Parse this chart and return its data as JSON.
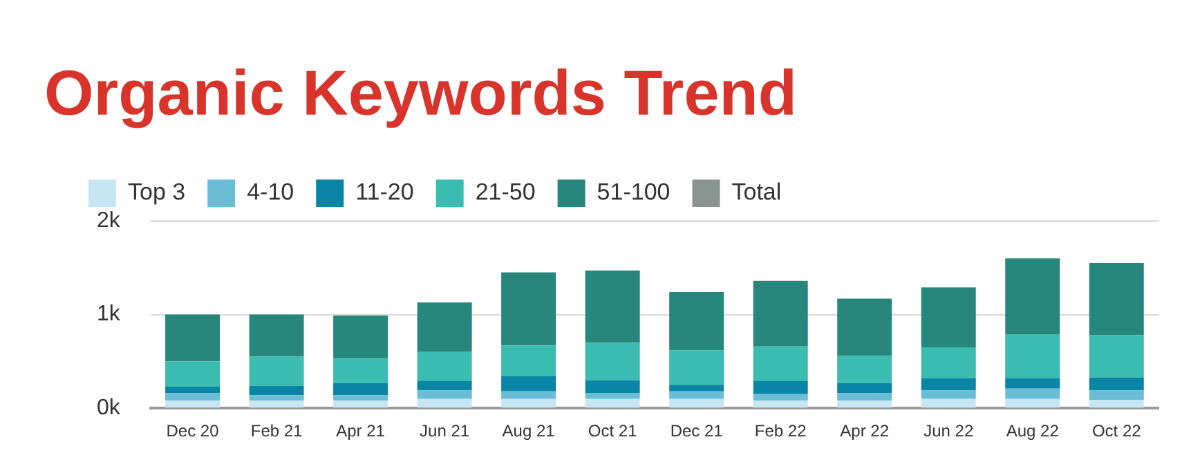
{
  "chart_data": {
    "type": "bar",
    "title": "Organic Keywords Trend",
    "stacked": true,
    "legend": "top left",
    "grid": "y",
    "categories": [
      "Dec 20",
      "Feb 21",
      "Apr 21",
      "Jun 21",
      "Aug 21",
      "Oct 21",
      "Dec 21",
      "Feb 22",
      "Apr 22",
      "Jun 22",
      "Aug 22",
      "Oct 22"
    ],
    "ylim": [
      0,
      2
    ],
    "yticks": [
      {
        "value": 0,
        "label": "0k"
      },
      {
        "value": 1,
        "label": "1k"
      },
      {
        "value": 2,
        "label": "2k"
      }
    ],
    "series": [
      {
        "name": "Top 3",
        "color": "#c5e6f2",
        "values": [
          0.08,
          0.08,
          0.08,
          0.1,
          0.1,
          0.1,
          0.1,
          0.08,
          0.08,
          0.1,
          0.1,
          0.09
        ]
      },
      {
        "name": "4-10",
        "color": "#6bbdd6",
        "values": [
          0.08,
          0.06,
          0.06,
          0.09,
          0.08,
          0.06,
          0.08,
          0.07,
          0.08,
          0.09,
          0.11,
          0.1
        ]
      },
      {
        "name": "11-20",
        "color": "#0a85a6",
        "values": [
          0.07,
          0.1,
          0.13,
          0.1,
          0.16,
          0.14,
          0.07,
          0.14,
          0.11,
          0.13,
          0.11,
          0.14
        ]
      },
      {
        "name": "21-50",
        "color": "#3bbcb0",
        "values": [
          0.27,
          0.31,
          0.26,
          0.31,
          0.33,
          0.4,
          0.37,
          0.37,
          0.29,
          0.33,
          0.47,
          0.45
        ]
      },
      {
        "name": "51-100",
        "color": "#27877c",
        "values": [
          0.5,
          0.45,
          0.46,
          0.53,
          0.78,
          0.77,
          0.62,
          0.7,
          0.61,
          0.64,
          0.81,
          0.77
        ]
      },
      {
        "name": "Total",
        "color": "#8a9490",
        "values": [
          null,
          null,
          null,
          null,
          null,
          null,
          null,
          null,
          null,
          null,
          null,
          null
        ]
      }
    ]
  }
}
